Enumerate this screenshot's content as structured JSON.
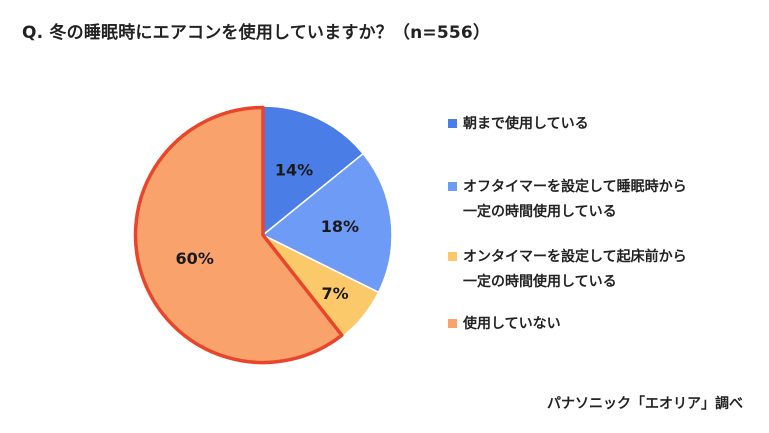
{
  "title": "Q. 冬の睡眠時にエアコンを使用していますか？（n=556）",
  "source": "パナソニック「エオリア」調べ",
  "chart_data": {
    "type": "pie",
    "title": "Q. 冬の睡眠時にエアコンを使用していますか？（n=556）",
    "slices": [
      {
        "label": "朝まで使用している",
        "value": 14,
        "value_label": "14%",
        "color": "#4a7ee6"
      },
      {
        "label": "オフタイマーを設定して睡眠時から\n一定の時間使用している",
        "value": 18,
        "value_label": "18%",
        "color": "#6e9bf5"
      },
      {
        "label": "オンタイマーを設定して起床前から\n一定の時間使用している",
        "value": 7,
        "value_label": "7%",
        "color": "#fcc96a"
      },
      {
        "label": "使用していない",
        "value": 60,
        "value_label": "60%",
        "color": "#f9a26c",
        "highlight_border": "#e8452a"
      }
    ],
    "start_angle": "12 o'clock",
    "direction": "clockwise",
    "legend_position": "right"
  }
}
